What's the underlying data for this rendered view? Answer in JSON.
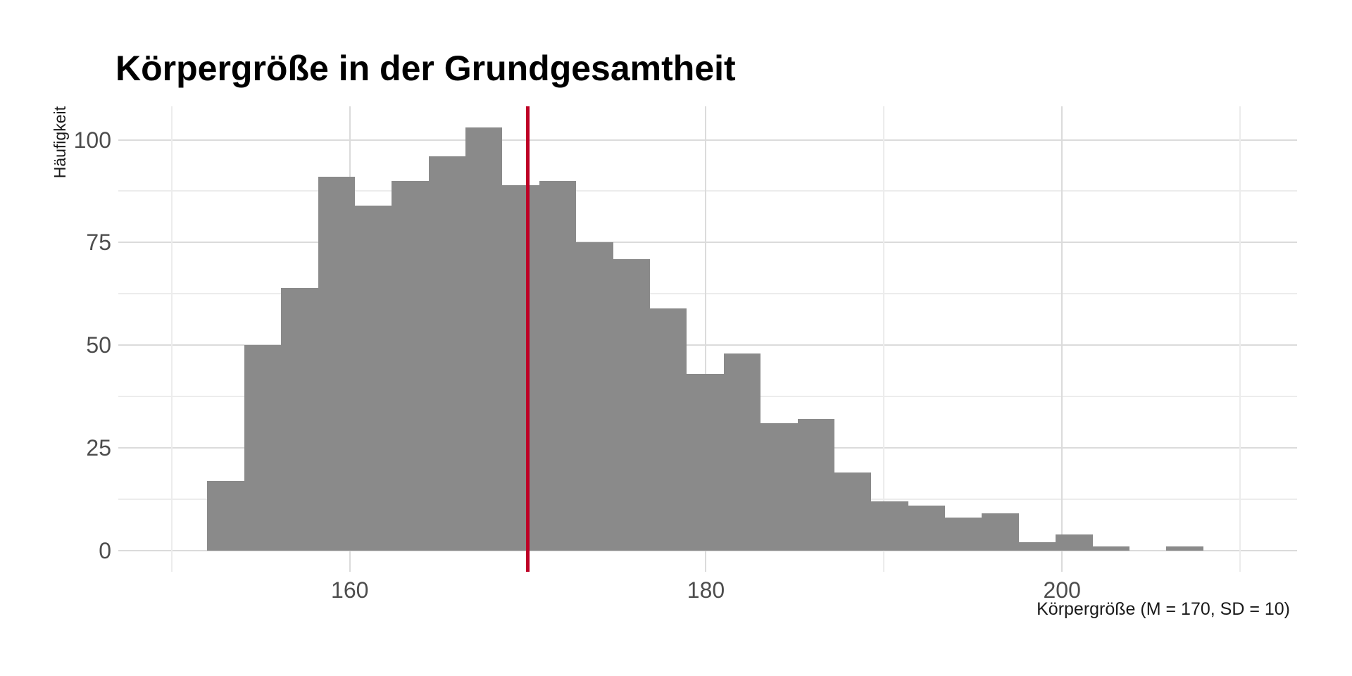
{
  "title": "Körpergröße in der Grundgesamtheit",
  "y_axis": {
    "label": "Häufigkeit",
    "tick_labels": [
      "0",
      "25",
      "50",
      "75",
      "100"
    ]
  },
  "x_axis": {
    "label": "Körpergröße (M = 170, SD = 10)",
    "tick_labels": [
      "160",
      "180",
      "200"
    ]
  },
  "chart_data": {
    "type": "bar",
    "subtype": "histogram",
    "title": "Körpergröße in der Grundgesamtheit",
    "xlabel": "Körpergröße (M = 170, SD = 10)",
    "ylabel": "Häufigkeit",
    "bin_start": 152,
    "bin_width": 2.0714,
    "counts": [
      17,
      50,
      64,
      91,
      84,
      90,
      96,
      103,
      89,
      90,
      75,
      71,
      59,
      43,
      48,
      31,
      32,
      19,
      12,
      11,
      8,
      9,
      2,
      4,
      1,
      0,
      1
    ],
    "total_n": 1200,
    "mean_reference_line_x": 170,
    "x_ticks": [
      160,
      180,
      200
    ],
    "x_minor_ticks": [
      150,
      170,
      190,
      210
    ],
    "y_ticks": [
      0,
      25,
      50,
      75,
      100
    ],
    "y_minor_ticks": [
      12.5,
      37.5,
      62.5,
      87.5
    ],
    "xlim": [
      147.0,
      213.2
    ],
    "ylim": [
      -5.15,
      108.15
    ],
    "grid": "major+minor",
    "legend": "none"
  },
  "colors": {
    "background": "#FFFFFF",
    "bar": "#8A8A8A",
    "reference_line": "#BE0026",
    "grid_major": "#DBDBDB",
    "grid_minor": "#ECECEC",
    "tick_label": "#4D4D4D",
    "title": "#000000",
    "axis_title": "#1A1A1A"
  }
}
